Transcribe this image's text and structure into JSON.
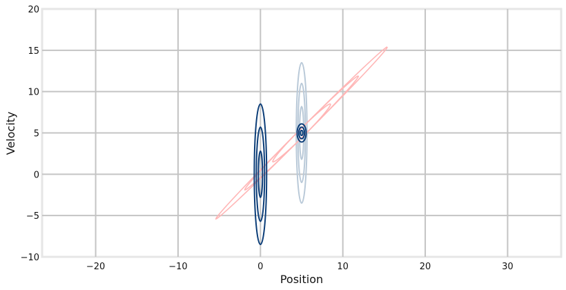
{
  "chart_data": {
    "type": "contour",
    "title": "",
    "xlabel": "Position",
    "ylabel": "Velocity",
    "xlim": [
      -26.5,
      36.5
    ],
    "ylim": [
      -10,
      20
    ],
    "grid": true,
    "xticks": [
      -20,
      -10,
      0,
      10,
      20,
      30
    ],
    "xtick_labels": [
      "−20",
      "−10",
      "0",
      "10",
      "20",
      "30"
    ],
    "yticks": [
      -10,
      -5,
      0,
      5,
      10,
      15,
      20
    ],
    "ytick_labels": [
      "−10",
      "−5",
      "0",
      "5",
      "10",
      "15",
      "20"
    ],
    "series": [
      {
        "color": "#b9c9d8",
        "center": [
          5,
          5
        ],
        "levels": [
          {
            "x": [
              4.35,
              5.65
            ],
            "y": [
              -3.5,
              13.5
            ]
          },
          {
            "x": [
              4.55,
              5.45
            ],
            "y": [
              -1.0,
              11.0
            ]
          },
          {
            "x": [
              4.75,
              5.25
            ],
            "y": [
              1.8,
              8.2
            ]
          }
        ]
      },
      {
        "color": "#ffb6b6",
        "center": [
          5,
          5
        ],
        "levels": [
          {
            "x": [
              -5.4,
              15.4
            ],
            "y": [
              -5.4,
              15.4
            ]
          },
          {
            "x": [
              -1.9,
              11.9
            ],
            "y": [
              -1.9,
              11.9
            ]
          },
          {
            "x": [
              1.5,
              8.5
            ],
            "y": [
              1.5,
              8.5
            ]
          }
        ]
      },
      {
        "color": "#0b3d78",
        "center": [
          0,
          0
        ],
        "levels": [
          {
            "x": [
              -0.75,
              0.75
            ],
            "y": [
              -8.5,
              8.5
            ]
          },
          {
            "x": [
              -0.5,
              0.5
            ],
            "y": [
              -5.7,
              5.7
            ]
          },
          {
            "x": [
              -0.25,
              0.25
            ],
            "y": [
              -2.8,
              2.8
            ]
          }
        ]
      },
      {
        "color": "#0b3d78",
        "center": [
          5,
          5
        ],
        "levels": [
          {
            "x": [
              4.45,
              5.55
            ],
            "y": [
              3.9,
              6.1
            ]
          },
          {
            "x": [
              4.65,
              5.35
            ],
            "y": [
              4.3,
              5.7
            ]
          },
          {
            "x": [
              4.85,
              5.15
            ],
            "y": [
              4.7,
              5.3
            ]
          }
        ]
      }
    ]
  }
}
